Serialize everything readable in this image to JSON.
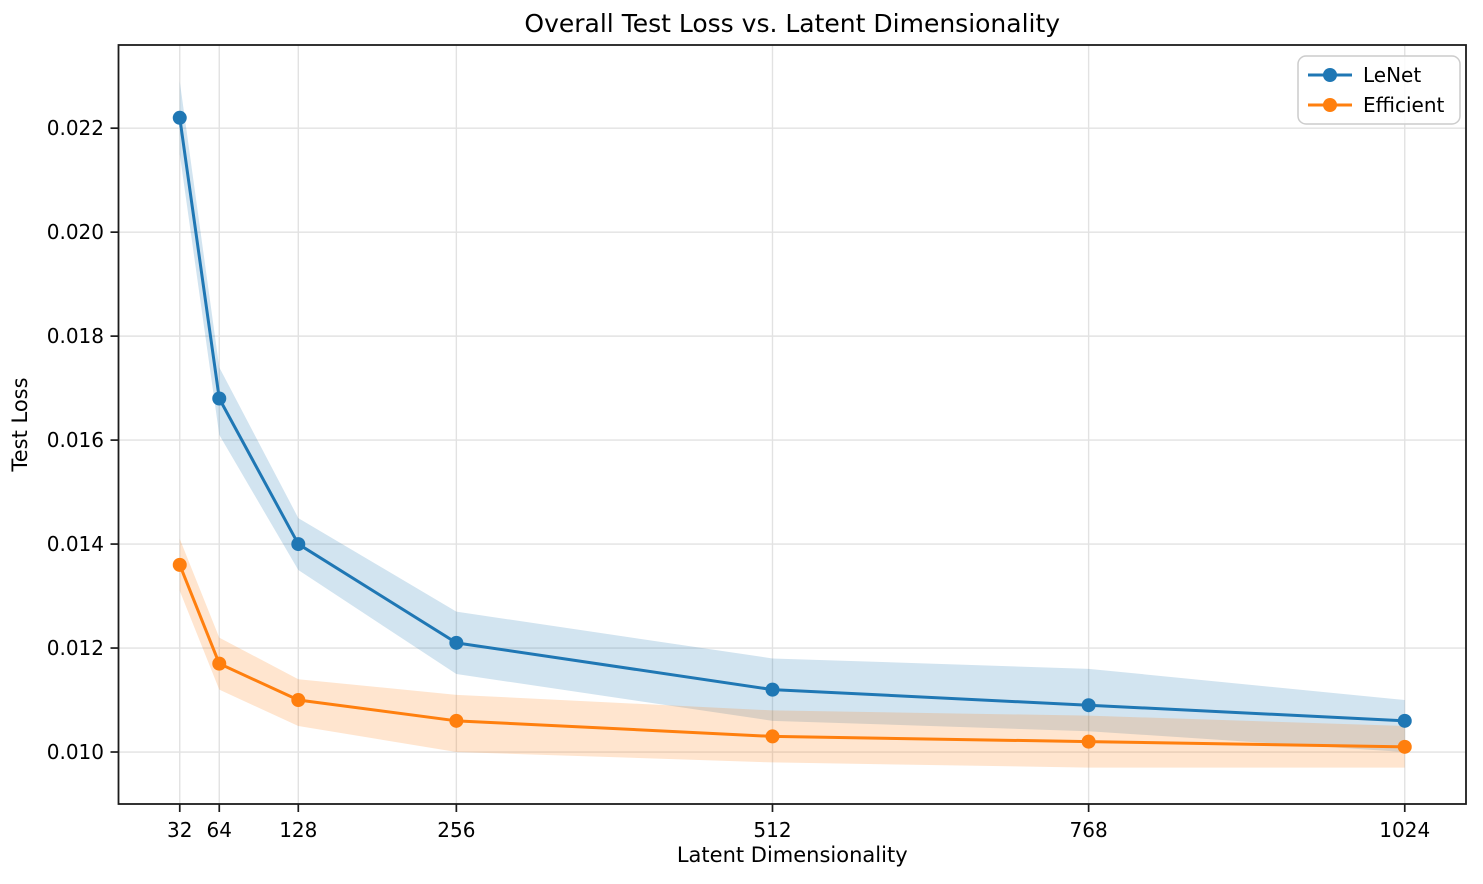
{
  "chart_data": {
    "type": "line",
    "title": "Overall Test Loss vs. Latent Dimensionality",
    "xlabel": "Latent Dimensionality",
    "ylabel": "Test Loss",
    "x": [
      32,
      64,
      128,
      256,
      512,
      768,
      1024
    ],
    "xtick_labels": [
      "32",
      "64",
      "128",
      "256",
      "512",
      "768",
      "1024"
    ],
    "yticks": [
      0.01,
      0.012,
      0.014,
      0.016,
      0.018,
      0.02,
      0.022
    ],
    "ytick_labels": [
      "0.010",
      "0.012",
      "0.014",
      "0.016",
      "0.018",
      "0.020",
      "0.022"
    ],
    "xlim": [
      -17.6,
      1073.6
    ],
    "ylim": [
      0.009,
      0.0236
    ],
    "grid": true,
    "legend_position": "upper right",
    "background_color": "#ffffff",
    "series": [
      {
        "name": "LeNet",
        "color": "#1f77b4",
        "values": [
          0.0222,
          0.0168,
          0.014,
          0.0121,
          0.0112,
          0.0109,
          0.0106
        ],
        "band_upper": [
          0.0229,
          0.0174,
          0.0145,
          0.0127,
          0.0118,
          0.0116,
          0.011
        ],
        "band_lower": [
          0.0215,
          0.0161,
          0.0135,
          0.0115,
          0.0106,
          0.0104,
          0.01
        ]
      },
      {
        "name": "Efficient",
        "color": "#ff7f0e",
        "values": [
          0.0136,
          0.0117,
          0.011,
          0.0106,
          0.0103,
          0.0102,
          0.0101
        ],
        "band_upper": [
          0.0141,
          0.0122,
          0.0114,
          0.0111,
          0.0108,
          0.0107,
          0.0105
        ],
        "band_lower": [
          0.0131,
          0.0112,
          0.0105,
          0.01,
          0.0098,
          0.0097,
          0.0097
        ]
      }
    ]
  }
}
